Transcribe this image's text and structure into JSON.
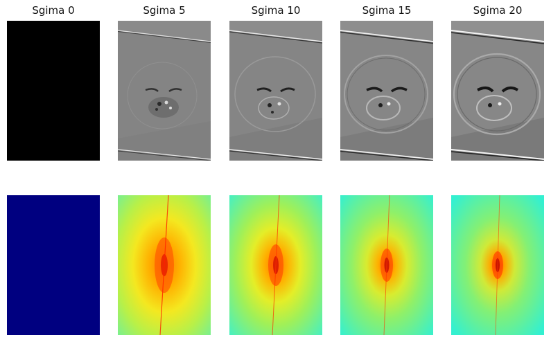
{
  "figure": {
    "columns": [
      {
        "title": "Sgima 0",
        "sigma": 0
      },
      {
        "title": "Sgima 5",
        "sigma": 5
      },
      {
        "title": "Sgima 10",
        "sigma": 10
      },
      {
        "title": "Sgima 15",
        "sigma": 15
      },
      {
        "title": "Sgima 20",
        "sigma": 20
      }
    ],
    "rows": [
      {
        "content": "high-pass filtered image",
        "colormap": "gray"
      },
      {
        "content": "magnitude spectrum",
        "colormap": "jet"
      }
    ],
    "colors": {
      "black": "#000000",
      "dark_blue": "#000080",
      "gray_mid": "#808080",
      "spectrum_bg": "#3ff0b8",
      "spectrum_mid": "#c8f040",
      "spectrum_hot": "#ff9a10",
      "spectrum_center": "#e81c00"
    }
  }
}
